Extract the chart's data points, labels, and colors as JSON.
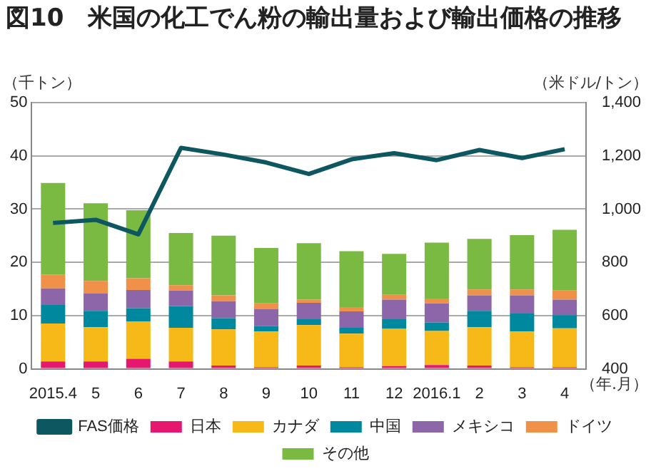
{
  "chart_data": {
    "type": "bar",
    "title": "図10　米国の化工でん粉の輸出量および輸出価格の推移",
    "categories": [
      "2015.4",
      "5",
      "6",
      "7",
      "8",
      "9",
      "10",
      "11",
      "12",
      "2016.1",
      "2",
      "3",
      "4"
    ],
    "stacked": true,
    "ylabel": "（千トン）",
    "y2label": "（米ドル/トン）",
    "xlabel": "（年.月）",
    "ylim": [
      0,
      50
    ],
    "yticks": [
      0,
      10,
      20,
      30,
      40,
      50
    ],
    "y2lim": [
      400,
      1400
    ],
    "y2ticks": [
      {
        "value": 400,
        "label": "400"
      },
      {
        "value": 600,
        "label": "600"
      },
      {
        "value": 800,
        "label": "800"
      },
      {
        "value": 1000,
        "label": "1,000"
      },
      {
        "value": 1200,
        "label": "1,200"
      },
      {
        "value": 1400,
        "label": "1,400"
      }
    ],
    "grid": "y",
    "legend": "bottom",
    "series": [
      {
        "name": "日本",
        "color": "#e6176e",
        "values": [
          1.4,
          1.4,
          1.9,
          1.4,
          0.6,
          0.3,
          0.6,
          0.3,
          0.5,
          0.7,
          0.6,
          0.3,
          0.3
        ]
      },
      {
        "name": "カナダ",
        "color": "#f7b918",
        "values": [
          7.1,
          6.4,
          7.0,
          6.3,
          6.8,
          6.7,
          7.6,
          6.3,
          7.0,
          6.4,
          7.2,
          6.7,
          7.3
        ]
      },
      {
        "name": "中国",
        "color": "#00889f",
        "values": [
          3.5,
          3.1,
          2.5,
          4.1,
          2.1,
          1.0,
          1.1,
          1.1,
          1.8,
          1.6,
          3.1,
          3.4,
          2.5
        ]
      },
      {
        "name": "メキシコ",
        "color": "#8c66a8",
        "values": [
          3.1,
          3.3,
          3.4,
          2.9,
          3.2,
          3.2,
          3.1,
          3.1,
          3.7,
          3.6,
          2.9,
          3.4,
          2.9
        ]
      },
      {
        "name": "ドイツ",
        "color": "#f0914a",
        "values": [
          2.6,
          2.3,
          2.2,
          1.0,
          1.1,
          1.1,
          0.6,
          0.8,
          0.9,
          0.9,
          1.1,
          1.1,
          1.7
        ]
      },
      {
        "name": "その他",
        "color": "#7aba43",
        "values": [
          17.2,
          14.6,
          12.8,
          9.8,
          11.2,
          10.4,
          10.6,
          10.5,
          7.7,
          10.5,
          9.5,
          10.2,
          11.4
        ]
      },
      {
        "name": "FAS価格",
        "type": "line",
        "axis": "y2",
        "color": "#0d5760",
        "marker": "none",
        "values": [
          948,
          960,
          905,
          1230,
          1205,
          1175,
          1132,
          1187,
          1210,
          1184,
          1222,
          1192,
          1225
        ]
      }
    ]
  }
}
